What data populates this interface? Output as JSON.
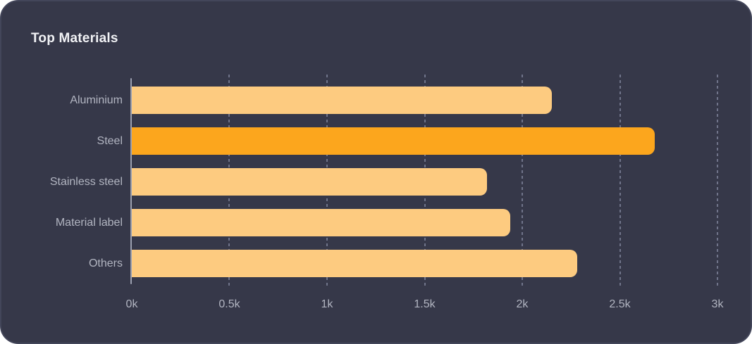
{
  "card": {
    "title": "Top Materials"
  },
  "chart_data": {
    "type": "bar",
    "orientation": "horizontal",
    "title": "Top Materials",
    "categories": [
      "Aluminium",
      "Steel",
      "Stainless steel",
      "Material label",
      "Others"
    ],
    "values": [
      2150,
      2680,
      1820,
      1940,
      2280
    ],
    "highlight_index": 1,
    "xlabel": "",
    "ylabel": "",
    "xlim": [
      0,
      3000
    ],
    "x_ticks": [
      "0k",
      "0.5k",
      "1k",
      "1.5k",
      "2k",
      "2.5k",
      "3k"
    ],
    "x_tick_values": [
      0,
      500,
      1000,
      1500,
      2000,
      2500,
      3000
    ],
    "grid": "dashed-vertical",
    "legend": "none",
    "colors": {
      "background": "#363849",
      "border": "#43465A",
      "bar": "#FDCB80",
      "bar_highlight": "#FCA61D",
      "title": "#F1F2F5",
      "label": "#B2B5C1",
      "axis": "#9CA0B0",
      "gridline": "#70748A"
    }
  }
}
